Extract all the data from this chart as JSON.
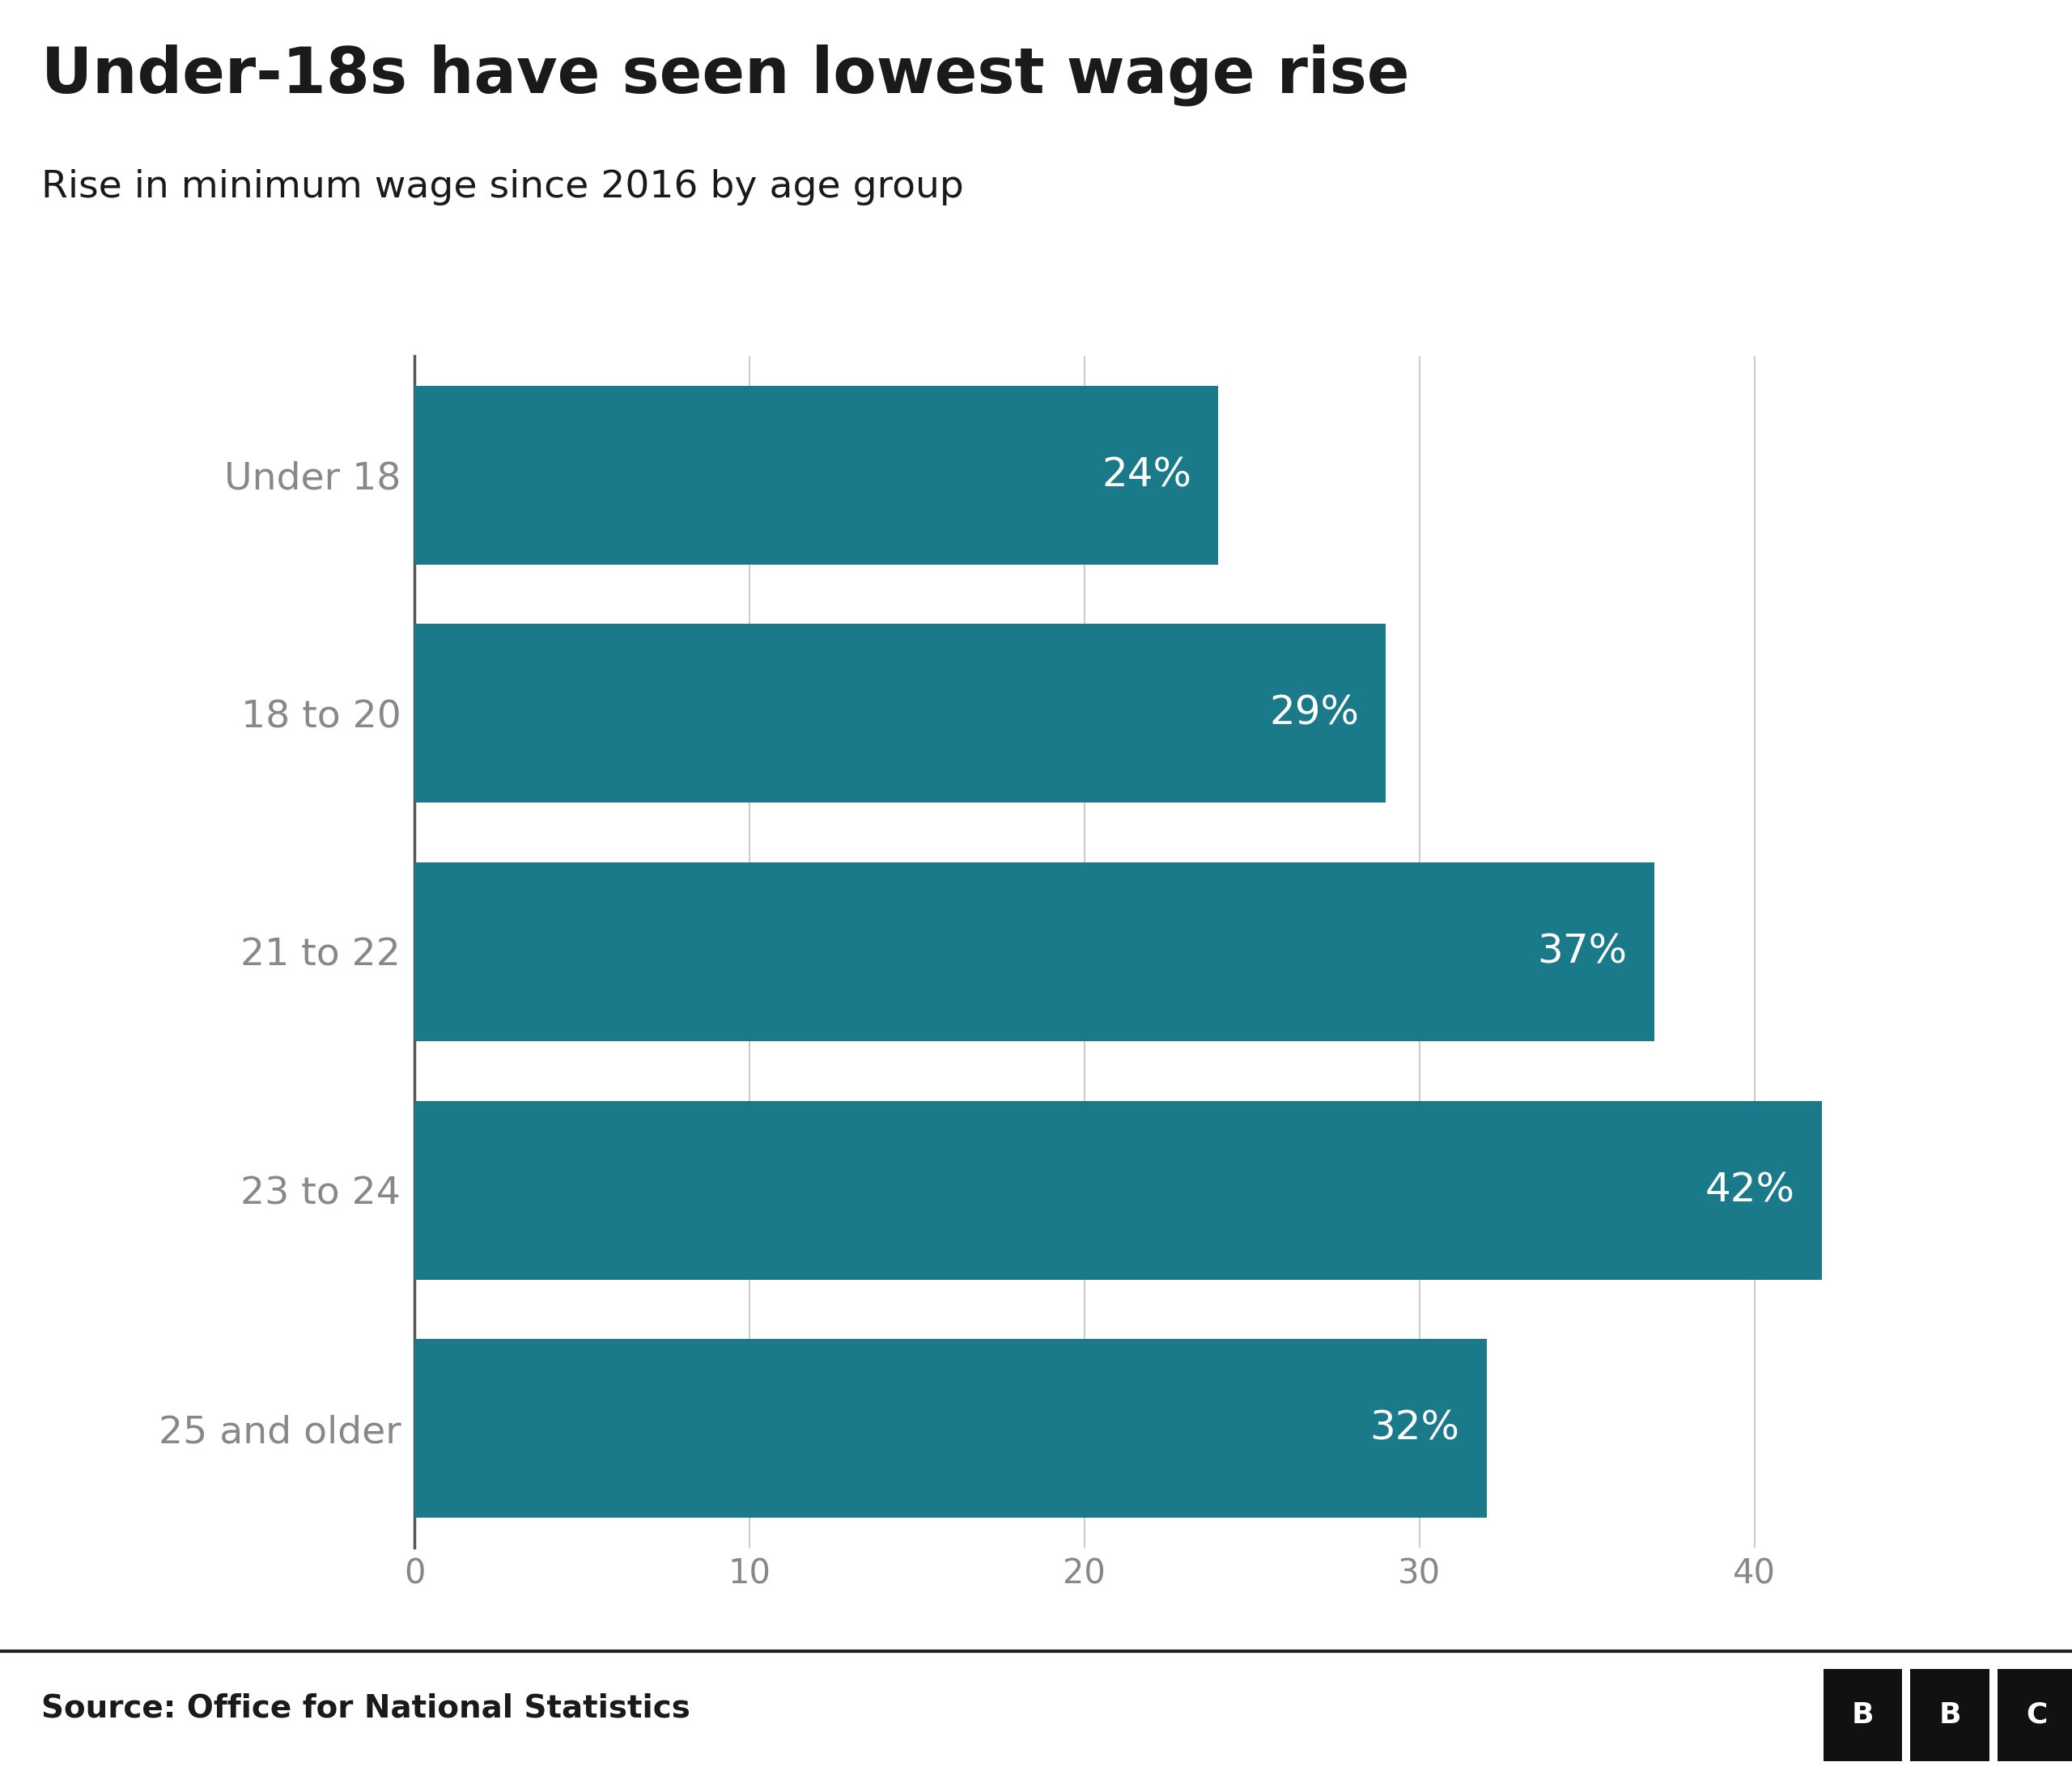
{
  "title": "Under-18s have seen lowest wage rise",
  "subtitle": "Rise in minimum wage since 2016 by age group",
  "source": "Source: Office for National Statistics",
  "categories": [
    "Under 18",
    "18 to 20",
    "21 to 22",
    "23 to 24",
    "25 and older"
  ],
  "values": [
    24,
    29,
    37,
    42,
    32
  ],
  "labels": [
    "24%",
    "29%",
    "37%",
    "42%",
    "32%"
  ],
  "bar_color": "#1a7a8a",
  "label_color": "#ffffff",
  "background_color": "#ffffff",
  "title_color": "#1a1a1a",
  "subtitle_color": "#1a1a1a",
  "source_color": "#1a1a1a",
  "axis_color": "#888888",
  "grid_color": "#cccccc",
  "xlim": [
    0,
    47
  ],
  "xticks": [
    0,
    10,
    20,
    30,
    40
  ],
  "title_fontsize": 56,
  "subtitle_fontsize": 34,
  "source_fontsize": 28,
  "label_fontsize": 36,
  "ytick_fontsize": 34,
  "xtick_fontsize": 30
}
